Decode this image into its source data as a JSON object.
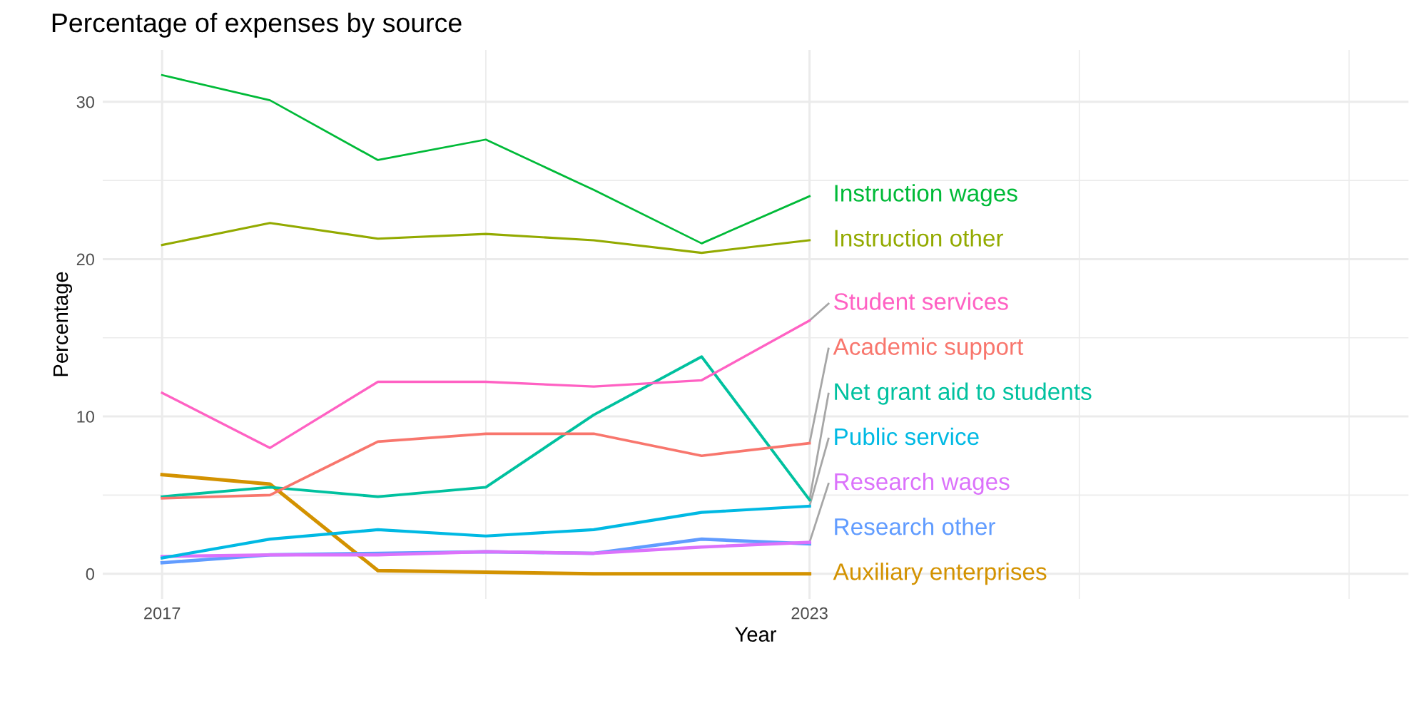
{
  "chart_data": {
    "type": "line",
    "title": "Percentage of expenses by source",
    "xlabel": "Year",
    "ylabel": "Percentage",
    "x": [
      2017,
      2018,
      2019,
      2020,
      2021,
      2022,
      2023
    ],
    "xlim": [
      2016.45,
      2028.55
    ],
    "xticks": [
      2017,
      {
        "value": 2020,
        "label": null
      },
      2023,
      {
        "value": 2025.5,
        "label": null
      },
      {
        "value": 2028,
        "label": null
      }
    ],
    "ylim": [
      -1.6,
      33.3
    ],
    "yticks": [
      0,
      {
        "value": 5,
        "label": null
      },
      10,
      {
        "value": 15,
        "label": null
      },
      20,
      {
        "value": 25,
        "label": null
      },
      30
    ],
    "grid": true,
    "legend": false,
    "marker": "none",
    "line_style": "solid",
    "series": [
      {
        "name": "Instruction wages",
        "color": "#00ba38",
        "values": [
          31.7,
          30.1,
          26.3,
          27.6,
          24.4,
          21.0,
          24.0
        ]
      },
      {
        "name": "Instruction other",
        "color": "#93aa00",
        "values": [
          20.9,
          22.3,
          21.3,
          21.6,
          21.2,
          20.4,
          21.2
        ]
      },
      {
        "name": "Student services",
        "color": "#ff61c3",
        "values": [
          11.5,
          8.0,
          12.2,
          12.2,
          11.9,
          12.3,
          16.1
        ]
      },
      {
        "name": "Academic support",
        "color": "#f8766d",
        "values": [
          4.8,
          5.0,
          8.4,
          8.9,
          8.9,
          7.5,
          8.3
        ]
      },
      {
        "name": "Net grant aid to students",
        "color": "#00c19f",
        "values": [
          4.9,
          5.5,
          4.9,
          5.5,
          10.1,
          13.8,
          4.7
        ]
      },
      {
        "name": "Public service",
        "color": "#00b9e3",
        "values": [
          1.0,
          2.2,
          2.8,
          2.4,
          2.8,
          3.9,
          4.3
        ]
      },
      {
        "name": "Research wages",
        "color": "#db72fb",
        "values": [
          1.1,
          1.2,
          1.2,
          1.4,
          1.3,
          1.7,
          2.0
        ]
      },
      {
        "name": "Research other",
        "color": "#619cff",
        "values": [
          0.7,
          1.2,
          1.3,
          1.4,
          1.3,
          2.2,
          1.9
        ]
      },
      {
        "name": "Auxiliary enterprises",
        "color": "#d39200",
        "values": [
          6.3,
          5.7,
          0.2,
          0.1,
          0.0,
          0.0,
          0.0
        ]
      }
    ]
  }
}
